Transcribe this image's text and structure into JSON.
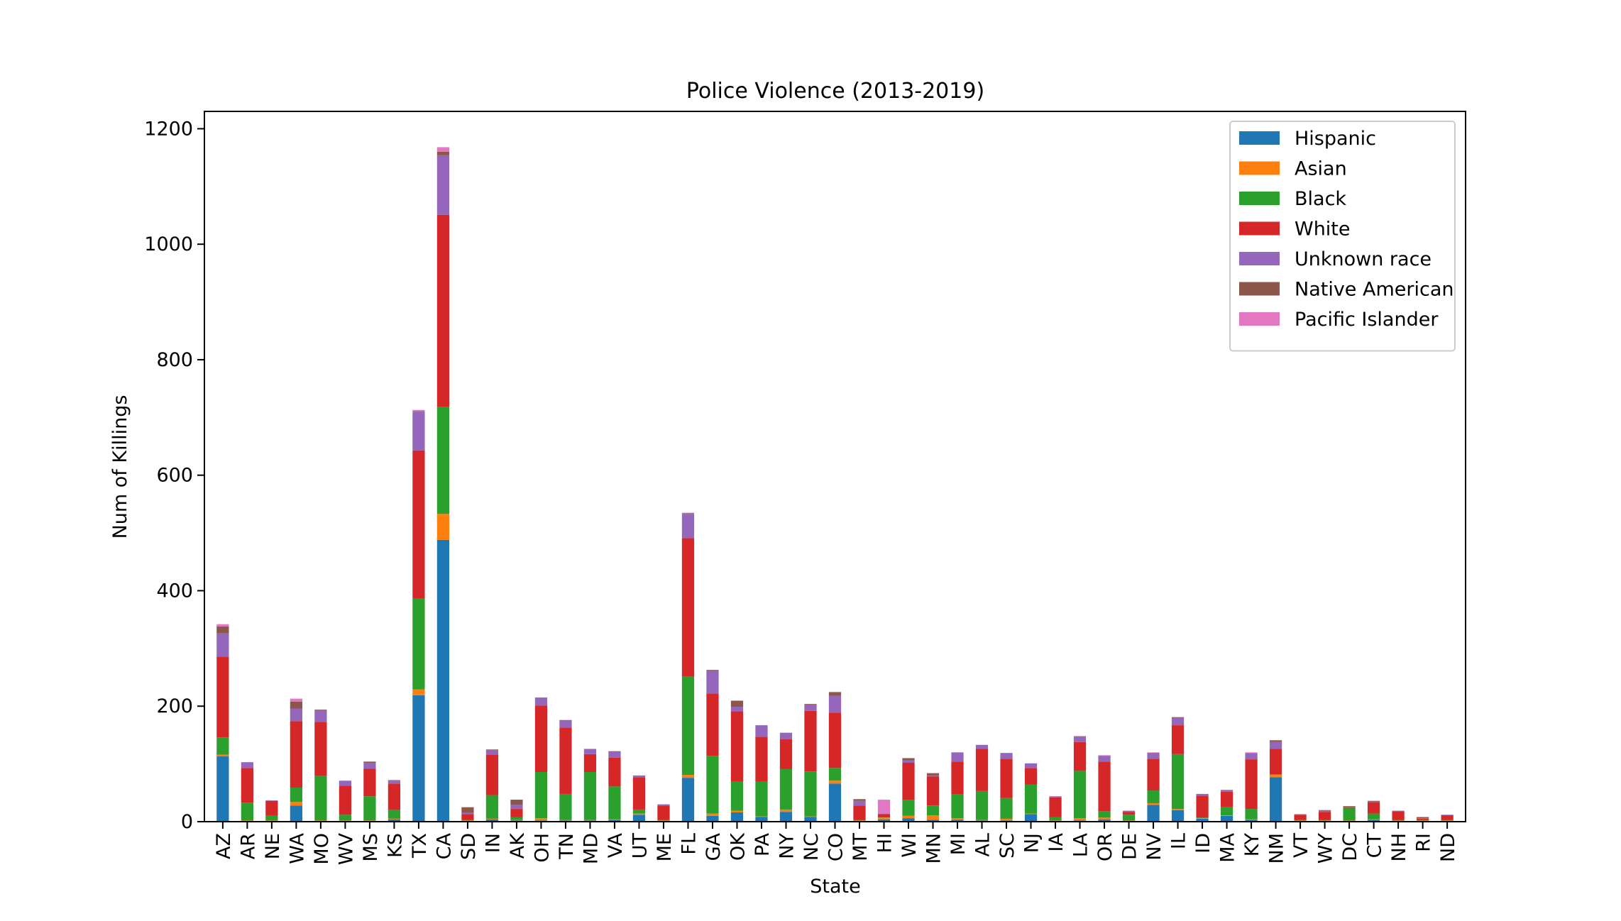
{
  "chart_data": {
    "type": "bar",
    "stacked": true,
    "title": "Police Violence (2013-2019)",
    "xlabel": "State",
    "ylabel": "Num of Killings",
    "ylim": [
      0,
      1230
    ],
    "yticks": [
      0,
      200,
      400,
      600,
      800,
      1000,
      1200
    ],
    "grid": false,
    "legend_position": "top-right",
    "categories": [
      "AZ",
      "AR",
      "NE",
      "WA",
      "MO",
      "WV",
      "MS",
      "KS",
      "TX",
      "CA",
      "SD",
      "IN",
      "AK",
      "OH",
      "TN",
      "MD",
      "VA",
      "UT",
      "ME",
      "FL",
      "GA",
      "OK",
      "PA",
      "NY",
      "NC",
      "CO",
      "MT",
      "HI",
      "WI",
      "MN",
      "MI",
      "AL",
      "SC",
      "NJ",
      "IA",
      "LA",
      "OR",
      "DE",
      "NV",
      "IL",
      "ID",
      "MA",
      "KY",
      "NM",
      "VT",
      "WY",
      "DC",
      "CT",
      "NH",
      "RI",
      "ND"
    ],
    "series": [
      {
        "name": "Hispanic",
        "color": "#1f77b4",
        "values": [
          113,
          1,
          1,
          28,
          1,
          1,
          1,
          4,
          219,
          488,
          1,
          4,
          2,
          2,
          2,
          2,
          3,
          12,
          1,
          76,
          10,
          16,
          8,
          17,
          8,
          66,
          1,
          4,
          6,
          3,
          3,
          2,
          2,
          13,
          1,
          2,
          4,
          1,
          29,
          20,
          5,
          10,
          3,
          77,
          1,
          1,
          1,
          3,
          1,
          1,
          1
        ]
      },
      {
        "name": "Asian",
        "color": "#ff7f0e",
        "values": [
          3,
          1,
          1,
          6,
          1,
          1,
          1,
          1,
          10,
          45,
          1,
          1,
          1,
          4,
          1,
          1,
          1,
          2,
          1,
          5,
          4,
          3,
          1,
          4,
          1,
          5,
          1,
          3,
          4,
          8,
          3,
          1,
          3,
          1,
          1,
          4,
          3,
          1,
          3,
          2,
          1,
          1,
          1,
          4,
          1,
          1,
          1,
          1,
          1,
          1,
          1
        ]
      },
      {
        "name": "Black",
        "color": "#2ca02c",
        "values": [
          30,
          31,
          8,
          25,
          77,
          10,
          42,
          15,
          157,
          185,
          1,
          41,
          5,
          80,
          45,
          83,
          57,
          7,
          1,
          170,
          100,
          50,
          60,
          70,
          78,
          22,
          1,
          1,
          28,
          17,
          41,
          50,
          36,
          50,
          6,
          82,
          11,
          10,
          22,
          95,
          1,
          14,
          18,
          1,
          1,
          1,
          22,
          10,
          1,
          1,
          1
        ]
      },
      {
        "name": "White",
        "color": "#d62728",
        "values": [
          140,
          60,
          26,
          115,
          94,
          50,
          48,
          46,
          257,
          333,
          10,
          70,
          14,
          115,
          115,
          31,
          50,
          56,
          25,
          240,
          108,
          122,
          78,
          52,
          105,
          96,
          25,
          5,
          64,
          50,
          57,
          73,
          68,
          29,
          34,
          50,
          86,
          5,
          55,
          50,
          38,
          27,
          86,
          44,
          9,
          14,
          1,
          20,
          15,
          2,
          8
        ]
      },
      {
        "name": "Unknown race",
        "color": "#9467bd",
        "values": [
          40,
          10,
          1,
          22,
          20,
          9,
          10,
          5,
          67,
          103,
          2,
          8,
          7,
          14,
          12,
          9,
          10,
          2,
          2,
          42,
          40,
          8,
          20,
          11,
          11,
          29,
          8,
          1,
          4,
          2,
          16,
          7,
          10,
          8,
          2,
          9,
          9,
          2,
          9,
          13,
          2,
          3,
          11,
          12,
          1,
          2,
          1,
          1,
          1,
          1,
          1
        ]
      },
      {
        "name": "Native American",
        "color": "#8c564b",
        "values": [
          12,
          0,
          0,
          12,
          1,
          0,
          2,
          1,
          1,
          6,
          10,
          1,
          9,
          0,
          1,
          0,
          1,
          1,
          0,
          1,
          1,
          10,
          0,
          0,
          1,
          6,
          3,
          0,
          4,
          4,
          0,
          0,
          0,
          0,
          0,
          1,
          1,
          0,
          1,
          1,
          1,
          0,
          0,
          3,
          0,
          1,
          1,
          1,
          0,
          2,
          0
        ]
      },
      {
        "name": "Pacific Islander",
        "color": "#e377c2",
        "values": [
          4,
          0,
          0,
          5,
          0,
          0,
          0,
          0,
          2,
          8,
          0,
          0,
          0,
          0,
          0,
          0,
          0,
          0,
          0,
          1,
          0,
          1,
          0,
          0,
          0,
          1,
          0,
          24,
          0,
          0,
          0,
          0,
          0,
          0,
          0,
          0,
          1,
          0,
          1,
          0,
          0,
          0,
          1,
          0,
          0,
          0,
          0,
          0,
          0,
          0,
          0
        ]
      }
    ]
  }
}
